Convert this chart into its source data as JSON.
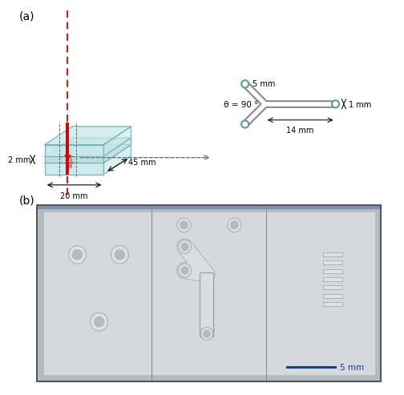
{
  "panel_a_label": "(a)",
  "panel_b_label": "(b)",
  "chip_color": "#c8e8ea",
  "chip_edge_color": "#7ab0b8",
  "chip_color2": "#b8dde0",
  "red_line_color": "#cc0000",
  "dashed_color": "#666666",
  "dim_2mm": "2 mm",
  "dim_20mm": "20 mm",
  "dim_45mm": "45 mm",
  "dim_5mm_label": "5 mm",
  "dim_14mm": "14 mm",
  "dim_1mm": "1 mm",
  "theta_label": "θ = 90 °",
  "scale_bar_label": "5 mm",
  "scale_bar_color": "#1a3a9a",
  "photo_bg": "#b2bbbe",
  "photo_light": "#c8cdd0",
  "photo_lighter": "#d5d9db",
  "y_chan_color": "#d8dde0",
  "hole_light": "#dde2e4",
  "hole_dark": "#b8bec1",
  "panel_split_color": "#888e92"
}
